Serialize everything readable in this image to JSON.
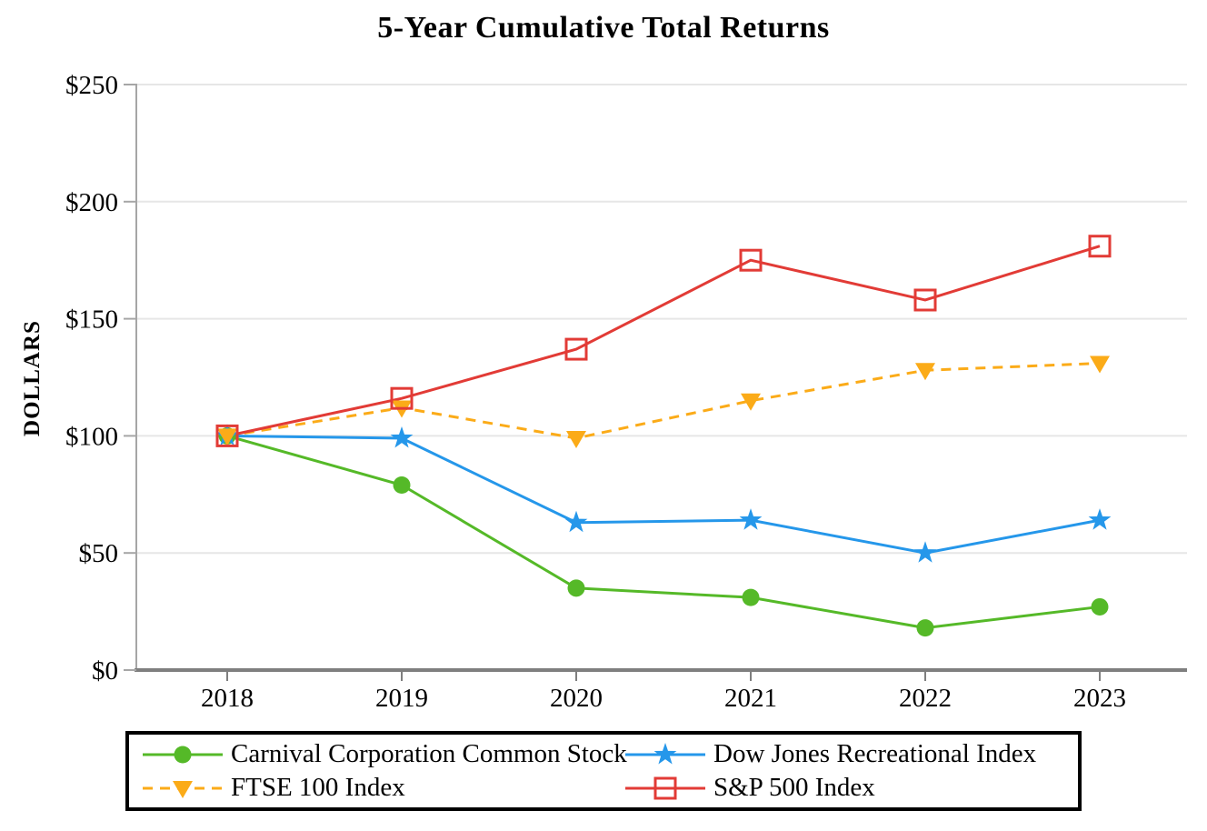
{
  "chart_data": {
    "type": "line",
    "title": "5-Year Cumulative Total Returns",
    "ylabel": "DOLLARS",
    "xlabel": "",
    "categories": [
      "2018",
      "2019",
      "2020",
      "2021",
      "2022",
      "2023"
    ],
    "y_tick_values": [
      0,
      50,
      100,
      150,
      200,
      250
    ],
    "y_tick_labels": [
      "$0",
      "$50",
      "$100",
      "$150",
      "$200",
      "$250"
    ],
    "ylim": [
      0,
      250
    ],
    "grid": true,
    "legend_position": "bottom-boxed",
    "series": [
      {
        "name": "Carnival Corporation Common Stock",
        "marker": "circle",
        "line_style": "solid",
        "color": "#55b928",
        "values": [
          100,
          79,
          35,
          31,
          18,
          27
        ]
      },
      {
        "name": "Dow Jones Recreational Index",
        "marker": "star",
        "line_style": "solid",
        "color": "#2597ea",
        "values": [
          100,
          99,
          63,
          64,
          50,
          64
        ]
      },
      {
        "name": "FTSE 100 Index",
        "marker": "triangle-down",
        "line_style": "dashed",
        "color": "#fbab18",
        "values": [
          100,
          112,
          99,
          115,
          128,
          131
        ]
      },
      {
        "name": "S&P 500 Index",
        "marker": "square-open",
        "line_style": "solid",
        "color": "#e23b36",
        "values": [
          100,
          116,
          137,
          175,
          158,
          181
        ]
      }
    ],
    "colors": {
      "gridline": "#e6e6e6",
      "y_axis": "#a6a6a6",
      "x_axis": "#7f7f7f",
      "text": "#000000"
    }
  }
}
